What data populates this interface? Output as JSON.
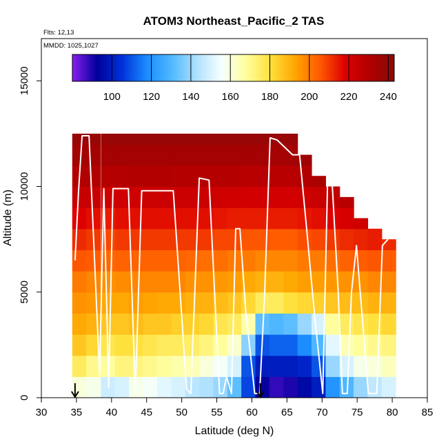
{
  "chart_data": {
    "type": "heatmap",
    "title": "ATOM3 Northeast_Pacific_2 TAS",
    "annotations": {
      "flights": "Flts: 12,13",
      "dates": "MMDD: 1025,1027"
    },
    "xlabel": "Latitude (deg N)",
    "ylabel": "Altitude (m)",
    "xlim": [
      30,
      85
    ],
    "ylim": [
      0,
      17000
    ],
    "x_ticks": [
      30,
      35,
      40,
      45,
      50,
      55,
      60,
      65,
      70,
      75,
      80,
      85
    ],
    "y_ticks": [
      0,
      5000,
      10000,
      15000
    ],
    "colorbar": {
      "range": [
        80,
        243
      ],
      "ticks": [
        100,
        120,
        140,
        160,
        180,
        200,
        220,
        240
      ],
      "colors": [
        "#8b1cf0",
        "#00009a",
        "#0030d8",
        "#1a8cff",
        "#4fb8ff",
        "#aee0ff",
        "#f4ffff",
        "#ffff9f",
        "#ffe03c",
        "#ffa500",
        "#ff5a00",
        "#dd0000",
        "#b00000",
        "#8a0a0a"
      ]
    },
    "curtain_columns": [
      {
        "lat": 35.4,
        "top": 12500,
        "v": [
          160,
          176,
          186,
          192,
          196,
          200,
          206,
          212,
          218,
          224,
          230,
          234,
          238
        ]
      },
      {
        "lat": 37.4,
        "top": 12500,
        "v": [
          158,
          170,
          182,
          190,
          195,
          198,
          205,
          210,
          216,
          224,
          230,
          234,
          238
        ]
      },
      {
        "lat": 39.5,
        "top": 12500,
        "v": [
          148,
          168,
          178,
          186,
          192,
          196,
          203,
          208,
          214,
          222,
          229,
          234,
          238
        ]
      },
      {
        "lat": 41.5,
        "top": 12500,
        "v": [
          150,
          172,
          180,
          186,
          192,
          197,
          204,
          210,
          216,
          222,
          229,
          234,
          238
        ]
      },
      {
        "lat": 43.5,
        "top": 12500,
        "v": [
          158,
          172,
          180,
          188,
          194,
          198,
          204,
          210,
          216,
          222,
          230,
          234,
          238
        ]
      },
      {
        "lat": 45.5,
        "top": 12500,
        "v": [
          156,
          170,
          178,
          186,
          193,
          198,
          204,
          210,
          216,
          223,
          230,
          234,
          238
        ]
      },
      {
        "lat": 47.5,
        "top": 12500,
        "v": [
          152,
          168,
          176,
          186,
          192,
          198,
          204,
          210,
          216,
          223,
          230,
          234,
          238
        ]
      },
      {
        "lat": 49.5,
        "top": 12500,
        "v": [
          150,
          166,
          176,
          184,
          192,
          198,
          204,
          210,
          216,
          223,
          229,
          234,
          238
        ]
      },
      {
        "lat": 51.5,
        "top": 12500,
        "v": [
          145,
          165,
          175,
          184,
          190,
          196,
          203,
          210,
          216,
          223,
          229,
          234,
          238
        ]
      },
      {
        "lat": 53.5,
        "top": 12500,
        "v": [
          143,
          160,
          172,
          182,
          190,
          196,
          202,
          210,
          216,
          223,
          229,
          234,
          238
        ]
      },
      {
        "lat": 55.5,
        "top": 12500,
        "v": [
          140,
          156,
          168,
          178,
          188,
          195,
          202,
          208,
          215,
          222,
          229,
          234,
          238
        ]
      },
      {
        "lat": 57.5,
        "top": 12500,
        "v": [
          132,
          150,
          162,
          176,
          186,
          194,
          200,
          208,
          214,
          222,
          229,
          234,
          238
        ]
      },
      {
        "lat": 59.5,
        "top": 12500,
        "v": [
          108,
          110,
          138,
          166,
          182,
          192,
          200,
          206,
          214,
          221,
          228,
          234,
          238
        ]
      },
      {
        "lat": 61.5,
        "top": 12500,
        "v": [
          92,
          100,
          110,
          132,
          176,
          190,
          198,
          206,
          214,
          221,
          228,
          234,
          238
        ]
      },
      {
        "lat": 63.5,
        "top": 12500,
        "v": [
          88,
          100,
          112,
          130,
          176,
          190,
          198,
          205,
          214,
          221,
          228,
          234,
          238
        ]
      },
      {
        "lat": 65.5,
        "top": 12500,
        "v": [
          90,
          100,
          112,
          132,
          180,
          192,
          198,
          205,
          214,
          221,
          228,
          234,
          238
        ]
      },
      {
        "lat": 67.5,
        "top": 11500,
        "v": [
          95,
          102,
          118,
          140,
          182,
          194,
          200,
          207,
          215,
          222,
          230,
          236
        ]
      },
      {
        "lat": 69.5,
        "top": 10500,
        "v": [
          100,
          110,
          130,
          150,
          184,
          194,
          200,
          208,
          216,
          224,
          232
        ]
      },
      {
        "lat": 71.5,
        "top": 10000,
        "v": [
          120,
          140,
          152,
          168,
          186,
          195,
          202,
          210,
          218,
          226
        ]
      },
      {
        "lat": 73.5,
        "top": 9500,
        "v": [
          130,
          150,
          165,
          176,
          188,
          196,
          204,
          212,
          220,
          228
        ]
      },
      {
        "lat": 75.5,
        "top": 8500,
        "v": [
          140,
          158,
          168,
          178,
          188,
          196,
          205,
          213,
          222
        ]
      },
      {
        "lat": 77.5,
        "top": 8000,
        "v": [
          146,
          160,
          170,
          180,
          190,
          198,
          206,
          214
        ]
      },
      {
        "lat": 79.5,
        "top": 7500,
        "v": [
          150,
          164,
          172,
          182,
          190,
          198,
          205,
          212
        ]
      }
    ],
    "flight_track": {
      "lat": [
        34.8,
        35.3,
        35.8,
        36.8,
        38.3,
        38.9,
        39.6,
        40.2,
        41.3,
        42.4,
        43.4,
        44.3,
        45.2,
        45.8,
        48.8,
        50.7,
        51.3,
        52.5,
        53.9,
        55.4,
        55.9,
        56.4,
        57.1,
        57.7,
        58.3,
        59.1,
        60.4,
        61.1,
        61.8,
        62.6,
        63.6,
        65.8,
        66.8,
        67.8,
        68.9,
        70.1,
        70.8,
        71.4,
        72.3,
        72.9,
        73.6,
        74.2,
        74.9,
        76.6,
        77.8,
        78.6,
        79.4
      ],
      "alt": [
        6500,
        9800,
        12400,
        12400,
        1100,
        9900,
        500,
        9900,
        9900,
        9900,
        200,
        9800,
        9800,
        9800,
        9800,
        400,
        200,
        10400,
        10300,
        200,
        200,
        1000,
        200,
        8000,
        8000,
        4200,
        200,
        200,
        4800,
        12300,
        12200,
        11500,
        11500,
        8000,
        4000,
        200,
        10400,
        10400,
        5000,
        200,
        200,
        5000,
        7200,
        200,
        200,
        7200,
        7500
      ]
    },
    "markers": [
      {
        "lat": 34.8,
        "symbol": "down-arrow"
      },
      {
        "lat": 61.2,
        "symbol": "down-arrow"
      }
    ]
  }
}
